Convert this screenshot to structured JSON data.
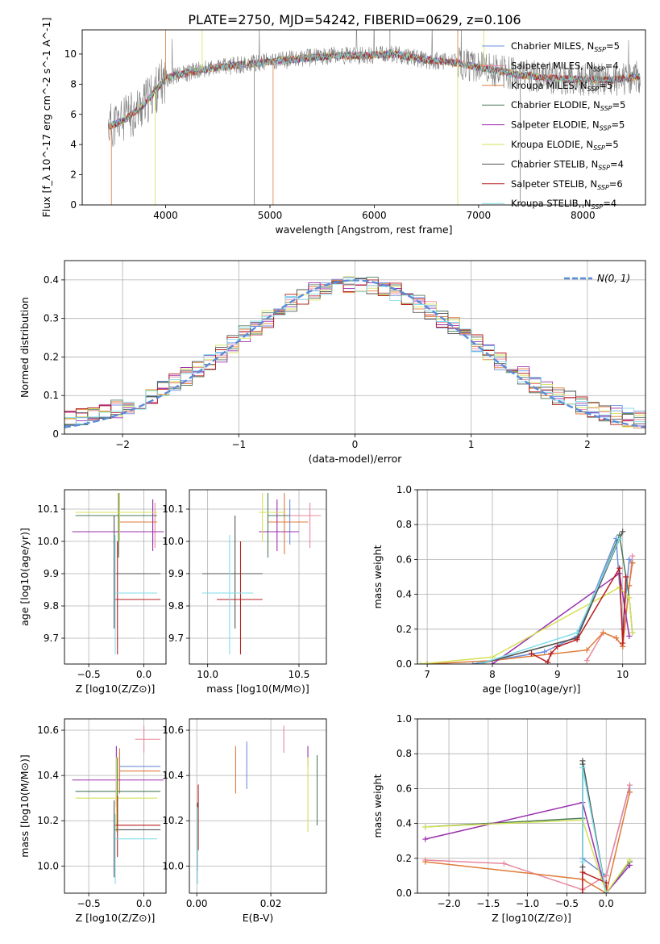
{
  "title": "PLATE=2750, MJD=54242, FIBERID=0629, z=0.106",
  "legend_title_series": [
    {
      "name": "Chabrier MILES, N_{SSP}=5",
      "sub": "SSP",
      "pre": "Chabrier MILES, N",
      "post": "=5",
      "color": "#6b8fde"
    },
    {
      "name": "Salpeter MILES, N_{SSP}=4",
      "sub": "SSP",
      "pre": "Salpeter MILES, N",
      "post": "=4",
      "color": "#e8879c"
    },
    {
      "name": "Kroupa MILES, N_{SSP}=5",
      "sub": "SSP",
      "pre": "Kroupa MILES, N",
      "post": "=5",
      "color": "#e07b39"
    },
    {
      "name": "Chabrier ELODIE, N_{SSP}=5",
      "sub": "SSP",
      "pre": "Chabrier ELODIE, N",
      "post": "=5",
      "color": "#4d7a5a"
    },
    {
      "name": "Salpeter ELODIE, N_{SSP}=5",
      "sub": "SSP",
      "pre": "Salpeter ELODIE, N",
      "post": "=5",
      "color": "#9b2fae"
    },
    {
      "name": "Kroupa ELODIE, N_{SSP}=5",
      "sub": "SSP",
      "pre": "Kroupa ELODIE, N",
      "post": "=5",
      "color": "#d4e157"
    },
    {
      "name": "Chabrier STELIB, N_{SSP}=4",
      "sub": "SSP",
      "pre": "Chabrier STELIB, N",
      "post": "=4",
      "color": "#555555"
    },
    {
      "name": "Salpeter STELIB, N_{SSP}=6",
      "sub": "SSP",
      "pre": "Salpeter STELIB, N",
      "post": "=6",
      "color": "#b71c1c"
    },
    {
      "name": "Kroupa STELIB, N_{SSP}=4",
      "sub": "SSP",
      "pre": "Kroupa STELIB, N",
      "post": "=4",
      "color": "#80deea"
    }
  ],
  "chart_data": [
    {
      "id": "spectrum",
      "type": "line",
      "xlabel": "wavelength [Angstrom, rest frame]",
      "ylabel": "Flux [f_λ 10^-17 erg cm^-2 s^-1 A^-1]",
      "xlim": [
        3200,
        8600
      ],
      "ylim": [
        0,
        11.6
      ],
      "xticks": [
        4000,
        5000,
        6000,
        7000,
        8000
      ],
      "yticks": [
        0,
        2,
        4,
        6,
        8,
        10
      ],
      "grid": false,
      "legend": "right",
      "data_color": "#808080",
      "anchors": {
        "x": [
          3450,
          3600,
          3800,
          4000,
          4300,
          4600,
          5000,
          5300,
          5600,
          5900,
          6200,
          6500,
          6800,
          7100,
          7400,
          7700,
          8000,
          8300,
          8550
        ],
        "y": [
          5.2,
          5.6,
          6.7,
          8.4,
          8.9,
          9.2,
          9.5,
          9.7,
          9.9,
          9.9,
          10.0,
          9.6,
          9.4,
          9.0,
          8.6,
          8.4,
          8.3,
          8.3,
          8.5
        ]
      }
    },
    {
      "id": "residuals",
      "type": "step",
      "xlabel": "(data-model)/error",
      "ylabel": "Normed distribution",
      "xlim": [
        -2.5,
        2.5
      ],
      "ylim": [
        0,
        0.45
      ],
      "xticks": [
        -2,
        -1,
        0,
        1,
        2
      ],
      "yticks": [
        0.0,
        0.1,
        0.2,
        0.3,
        0.4
      ],
      "grid": true,
      "legend": "top-right",
      "gauss_label": "N(0, 1)",
      "gauss_color": "#5b8bd9"
    },
    {
      "id": "age_vs_Z",
      "type": "errorbar",
      "xlabel": "Z [log10(Z/Z⊙)]",
      "ylabel": "age  [log10(age/yr)]",
      "xlim": [
        -0.72,
        0.2
      ],
      "ylim": [
        9.62,
        10.16
      ],
      "xticks": [
        -0.5,
        0.0
      ],
      "xticklabels": [
        "−0.5",
        "0.0"
      ],
      "yticks": [
        9.7,
        9.8,
        9.9,
        10.0,
        10.1
      ],
      "yticklabels": [
        "9.7",
        "9.8",
        "9.9",
        "10.0",
        "10.1"
      ],
      "points": [
        {
          "c": 0,
          "x": 0.08,
          "xl": 0.08,
          "xh": 0.08,
          "y": 10.06,
          "yl": 9.99,
          "yh": 10.13
        },
        {
          "c": 1,
          "x": 0.1,
          "xl": 0.1,
          "xh": 0.1,
          "y": 10.05,
          "yl": 9.98,
          "yh": 10.12
        },
        {
          "c": 2,
          "x": -0.23,
          "xl": -0.23,
          "xh": 0.12,
          "y": 10.06,
          "yl": 9.96,
          "yh": 10.15
        },
        {
          "c": 3,
          "x": -0.23,
          "xl": -0.62,
          "xh": 0.12,
          "y": 10.08,
          "yl": 9.95,
          "yh": 10.15
        },
        {
          "c": 4,
          "x": 0.08,
          "xl": -0.65,
          "xh": 0.18,
          "y": 10.03,
          "yl": 9.97,
          "yh": 10.13
        },
        {
          "c": 5,
          "x": -0.22,
          "xl": -0.62,
          "xh": 0.12,
          "y": 10.09,
          "yl": 10.0,
          "yh": 10.15
        },
        {
          "c": 6,
          "x": -0.27,
          "xl": -0.27,
          "xh": 0.15,
          "y": 9.9,
          "yl": 9.73,
          "yh": 10.08
        },
        {
          "c": 7,
          "x": -0.24,
          "xl": -0.27,
          "xh": 0.15,
          "y": 9.82,
          "yl": 9.65,
          "yh": 10.0
        },
        {
          "c": 8,
          "x": -0.26,
          "xl": -0.26,
          "xh": 0.12,
          "y": 9.84,
          "yl": 9.65,
          "yh": 10.02
        }
      ]
    },
    {
      "id": "age_vs_mass",
      "type": "errorbar",
      "xlabel": "mass [log10(M/M⊙)]",
      "ylabel": "",
      "xlim": [
        9.9,
        10.65
      ],
      "ylim": [
        9.62,
        10.16
      ],
      "xticks": [
        10.0,
        10.5
      ],
      "xticklabels": [
        "10.0",
        "10.5"
      ],
      "yticks": [
        9.7,
        9.8,
        9.9,
        10.0,
        10.1
      ],
      "yticklabels": [
        "9.7",
        "9.8",
        "9.9",
        "10.0",
        "10.1"
      ],
      "points": [
        {
          "c": 0,
          "x": 10.45,
          "xl": 10.33,
          "xh": 10.55,
          "y": 10.06,
          "yl": 9.99,
          "yh": 10.13
        },
        {
          "c": 1,
          "x": 10.56,
          "xl": 10.45,
          "xh": 10.62,
          "y": 10.08,
          "yl": 9.98,
          "yh": 10.12
        },
        {
          "c": 2,
          "x": 10.42,
          "xl": 10.33,
          "xh": 10.55,
          "y": 10.06,
          "yl": 9.96,
          "yh": 10.15
        },
        {
          "c": 3,
          "x": 10.33,
          "xl": 10.33,
          "xh": 10.45,
          "y": 10.08,
          "yl": 9.95,
          "yh": 10.15
        },
        {
          "c": 4,
          "x": 10.38,
          "xl": 10.28,
          "xh": 10.5,
          "y": 10.03,
          "yl": 9.97,
          "yh": 10.13
        },
        {
          "c": 5,
          "x": 10.3,
          "xl": 10.28,
          "xh": 10.42,
          "y": 10.09,
          "yl": 10.0,
          "yh": 10.15
        },
        {
          "c": 6,
          "x": 10.15,
          "xl": 9.97,
          "xh": 10.3,
          "y": 9.9,
          "yl": 9.73,
          "yh": 10.08
        },
        {
          "c": 7,
          "x": 10.18,
          "xl": 10.05,
          "xh": 10.3,
          "y": 9.82,
          "yl": 9.65,
          "yh": 10.0
        },
        {
          "c": 8,
          "x": 10.12,
          "xl": 9.97,
          "xh": 10.25,
          "y": 9.84,
          "yl": 9.65,
          "yh": 10.02
        }
      ]
    },
    {
      "id": "mass_vs_Z",
      "type": "errorbar",
      "xlabel": "Z [log10(Z/Z⊙)]",
      "ylabel": "mass [log10(M/M⊙)]",
      "xlim": [
        -0.72,
        0.2
      ],
      "ylim": [
        9.88,
        10.65
      ],
      "xticks": [
        -0.5,
        0.0
      ],
      "xticklabels": [
        "−0.5",
        "0.0"
      ],
      "yticks": [
        10.0,
        10.2,
        10.4,
        10.6
      ],
      "yticklabels": [
        "10.0",
        "10.2",
        "10.4",
        "10.6"
      ],
      "points": [
        {
          "c": 0,
          "x": -0.22,
          "xl": -0.22,
          "xh": 0.15,
          "y": 10.44,
          "yl": 10.34,
          "yh": 10.5
        },
        {
          "c": 1,
          "x": -0.0,
          "xl": -0.08,
          "xh": 0.15,
          "y": 10.56,
          "yl": 10.5,
          "yh": 10.62
        },
        {
          "c": 2,
          "x": -0.22,
          "xl": -0.22,
          "xh": 0.15,
          "y": 10.42,
          "yl": 10.32,
          "yh": 10.52
        },
        {
          "c": 3,
          "x": -0.24,
          "xl": -0.62,
          "xh": 0.15,
          "y": 10.33,
          "yl": 10.18,
          "yh": 10.48
        },
        {
          "c": 4,
          "x": -0.25,
          "xl": -0.65,
          "xh": 0.18,
          "y": 10.38,
          "yl": 10.26,
          "yh": 10.53
        },
        {
          "c": 5,
          "x": -0.25,
          "xl": -0.62,
          "xh": 0.12,
          "y": 10.3,
          "yl": 10.15,
          "yh": 10.48
        },
        {
          "c": 6,
          "x": -0.27,
          "xl": -0.27,
          "xh": 0.15,
          "y": 10.16,
          "yl": 9.95,
          "yh": 10.29
        },
        {
          "c": 7,
          "x": -0.24,
          "xl": -0.27,
          "xh": 0.15,
          "y": 10.18,
          "yl": 10.04,
          "yh": 10.31
        },
        {
          "c": 8,
          "x": -0.26,
          "xl": -0.26,
          "xh": 0.12,
          "y": 10.12,
          "yl": 9.92,
          "yh": 10.23
        }
      ]
    },
    {
      "id": "mass_vs_ebv",
      "type": "errorbar",
      "xlabel": "E(B-V)",
      "ylabel": "",
      "xlim": [
        -0.002,
        0.035
      ],
      "ylim": [
        9.88,
        10.65
      ],
      "xticks": [
        0.0,
        0.02
      ],
      "xticklabels": [
        "0.00",
        "0.02"
      ],
      "yticks": [
        10.0,
        10.2,
        10.4,
        10.6
      ],
      "yticklabels": [
        "10.0",
        "10.2",
        "10.4",
        "10.6"
      ],
      "points": [
        {
          "c": 0,
          "x": 0.0135,
          "xl": 0.0135,
          "xh": 0.0135,
          "y": 10.45,
          "yl": 10.34,
          "yh": 10.55
        },
        {
          "c": 1,
          "x": 0.0235,
          "xl": 0.0235,
          "xh": 0.0235,
          "y": 10.56,
          "yl": 10.5,
          "yh": 10.62
        },
        {
          "c": 2,
          "x": 0.0105,
          "xl": 0.0105,
          "xh": 0.0105,
          "y": 10.42,
          "yl": 10.32,
          "yh": 10.53
        },
        {
          "c": 3,
          "x": 0.0325,
          "xl": 0.0325,
          "xh": 0.0325,
          "y": 10.33,
          "yl": 10.18,
          "yh": 10.49
        },
        {
          "c": 4,
          "x": 0.03,
          "xl": 0.03,
          "xh": 0.03,
          "y": 10.48,
          "yl": 10.44,
          "yh": 10.53
        },
        {
          "c": 5,
          "x": 0.03,
          "xl": 0.03,
          "xh": 0.03,
          "y": 10.3,
          "yl": 10.15,
          "yh": 10.48
        },
        {
          "c": 6,
          "x": 0.0002,
          "xl": 0.0002,
          "xh": 0.0002,
          "y": 10.16,
          "yl": 9.98,
          "yh": 10.28
        },
        {
          "c": 7,
          "x": 0.0004,
          "xl": 0.0004,
          "xh": 0.0004,
          "y": 10.22,
          "yl": 10.07,
          "yh": 10.36
        },
        {
          "c": 8,
          "x": 0.0002,
          "xl": 0.0002,
          "xh": 0.0002,
          "y": 10.1,
          "yl": 9.92,
          "yh": 10.26
        }
      ]
    },
    {
      "id": "weight_vs_age",
      "type": "line",
      "xlabel": "age  [log10(age/yr)]",
      "ylabel": "mass weight",
      "xlim": [
        6.85,
        10.35
      ],
      "ylim": [
        0,
        1.0
      ],
      "xticks": [
        7,
        8,
        9,
        10
      ],
      "xticklabels": [
        "7",
        "8",
        "9",
        "10"
      ],
      "yticks": [
        0.0,
        0.2,
        0.4,
        0.6,
        0.8,
        1.0
      ],
      "yticklabels": [
        "0.0",
        "0.2",
        "0.4",
        "0.6",
        "0.8",
        "1.0"
      ],
      "grid": true,
      "series": [
        {
          "c": 0,
          "x": [
            7.7,
            8.0,
            8.8,
            9.3,
            9.9,
            10.0,
            10.1,
            10.15
          ],
          "y": [
            0.0,
            0.02,
            0.07,
            0.16,
            0.72,
            0.2,
            0.6,
            0.58
          ]
        },
        {
          "c": 1,
          "x": [
            9.45,
            9.7,
            9.9,
            10.0,
            10.1,
            10.15
          ],
          "y": [
            0.02,
            0.18,
            0.15,
            0.1,
            0.45,
            0.62
          ]
        },
        {
          "c": 2,
          "x": [
            7.0,
            8.0,
            9.45,
            9.7,
            9.9,
            10.0,
            10.1,
            10.15
          ],
          "y": [
            0.0,
            0.02,
            0.08,
            0.18,
            0.15,
            0.1,
            0.45,
            0.58
          ]
        },
        {
          "c": 3,
          "x": [
            7.8,
            9.3,
            9.95,
            10.1,
            10.15
          ],
          "y": [
            0.0,
            0.15,
            0.74,
            0.38,
            0.18
          ]
        },
        {
          "c": 4,
          "x": [
            8.0,
            9.95,
            10.1
          ],
          "y": [
            0.0,
            0.52,
            0.16
          ]
        },
        {
          "c": 5,
          "x": [
            6.9,
            8.0,
            9.95,
            10.1,
            10.15
          ],
          "y": [
            0.0,
            0.04,
            0.44,
            0.38,
            0.18
          ]
        },
        {
          "c": 6,
          "x": [
            7.8,
            9.3,
            10.0
          ],
          "y": [
            0.0,
            0.15,
            0.76
          ]
        },
        {
          "c": 7,
          "x": [
            8.6,
            8.85,
            8.9,
            9.0,
            9.3,
            9.95,
            10.0,
            10.05
          ],
          "y": [
            0.06,
            0.01,
            0.06,
            0.1,
            0.14,
            0.55,
            0.12,
            0.5
          ]
        },
        {
          "c": 8,
          "x": [
            7.8,
            9.3,
            9.95
          ],
          "y": [
            0.0,
            0.18,
            0.72
          ]
        }
      ]
    },
    {
      "id": "weight_vs_Z",
      "type": "line",
      "xlabel": "Z [log10(Z/Z⊙)]",
      "ylabel": "mass weight",
      "xlim": [
        -2.4,
        0.5
      ],
      "ylim": [
        0,
        1.0
      ],
      "xticks": [
        -2.0,
        -1.5,
        -1.0,
        -0.5,
        0.0
      ],
      "xticklabels": [
        "−2.0",
        "−1.5",
        "−1.0",
        "−0.5",
        "0.0"
      ],
      "yticks": [
        0.0,
        0.2,
        0.4,
        0.6,
        0.8,
        1.0
      ],
      "yticklabels": [
        "0.0",
        "0.2",
        "0.4",
        "0.6",
        "0.8",
        "1.0"
      ],
      "grid": true,
      "series": [
        {
          "c": 0,
          "x": [
            -0.3,
            -0.3,
            -0.3,
            0.0,
            0.3,
            0.3
          ],
          "y": [
            0.08,
            0.72,
            0.2,
            0.1,
            0.62,
            0.58
          ]
        },
        {
          "c": 1,
          "x": [
            -2.3,
            -1.3,
            -0.3,
            0.0,
            0.3
          ],
          "y": [
            0.19,
            0.17,
            0.02,
            0.1,
            0.62
          ]
        },
        {
          "c": 2,
          "x": [
            -2.3,
            -0.3,
            0.0,
            0.3
          ],
          "y": [
            0.18,
            0.08,
            0.0,
            0.58
          ]
        },
        {
          "c": 3,
          "x": [
            -2.3,
            -0.3,
            -0.3,
            0.0,
            0.3
          ],
          "y": [
            0.38,
            0.43,
            0.74,
            0.0,
            0.18
          ]
        },
        {
          "c": 4,
          "x": [
            -2.3,
            -0.3,
            0.0,
            0.3
          ],
          "y": [
            0.31,
            0.52,
            0.0,
            0.16
          ]
        },
        {
          "c": 5,
          "x": [
            -2.3,
            -0.3,
            0.0,
            0.3
          ],
          "y": [
            0.38,
            0.42,
            0.0,
            0.19
          ]
        },
        {
          "c": 6,
          "x": [
            -0.3,
            -0.3,
            0.0
          ],
          "y": [
            0.15,
            0.76,
            0.0
          ]
        },
        {
          "c": 7,
          "x": [
            -0.3,
            -0.3,
            0.0,
            0.0
          ],
          "y": [
            0.0,
            0.12,
            0.06,
            0.0
          ]
        },
        {
          "c": 8,
          "x": [
            -0.3,
            -0.3,
            0.0
          ],
          "y": [
            0.18,
            0.72,
            0.0
          ]
        }
      ]
    }
  ]
}
